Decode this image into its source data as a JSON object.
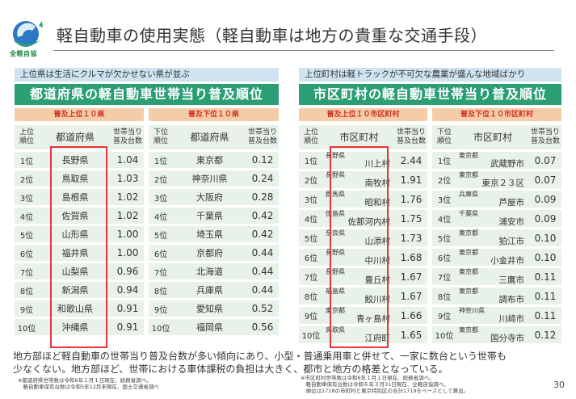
{
  "logo_text": "全軽自協",
  "title": "軽自動車の使用実態（軽自動車は地方の貴重な交通手段）",
  "left": {
    "caption": "上位県は生活にクルマが欠かせない県が並ぶ",
    "header": "都道府県の軽自動車世帯当り普及順位",
    "top_label": "普及上位１０県",
    "bottom_label": "普及下位１０県",
    "top_cols": [
      "上位\n順位",
      "都道府県",
      "世帯当り\n普及台数"
    ],
    "bottom_cols": [
      "下位\n順位",
      "都道府県",
      "世帯当り\n普及台数"
    ],
    "top_rows": [
      {
        "rank": "1位",
        "name": "長野県",
        "value": "1.04"
      },
      {
        "rank": "2位",
        "name": "鳥取県",
        "value": "1.03"
      },
      {
        "rank": "3位",
        "name": "島根県",
        "value": "1.02"
      },
      {
        "rank": "4位",
        "name": "佐賀県",
        "value": "1.02"
      },
      {
        "rank": "5位",
        "name": "山形県",
        "value": "1.00"
      },
      {
        "rank": "6位",
        "name": "福井県",
        "value": "1.00"
      },
      {
        "rank": "7位",
        "name": "山梨県",
        "value": "0.96"
      },
      {
        "rank": "8位",
        "name": "新潟県",
        "value": "0.94"
      },
      {
        "rank": "9位",
        "name": "和歌山県",
        "value": "0.91"
      },
      {
        "rank": "10位",
        "name": "沖縄県",
        "value": "0.91"
      }
    ],
    "bottom_rows": [
      {
        "rank": "1位",
        "name": "東京都",
        "value": "0.12"
      },
      {
        "rank": "2位",
        "name": "神奈川県",
        "value": "0.24"
      },
      {
        "rank": "3位",
        "name": "大阪府",
        "value": "0.28"
      },
      {
        "rank": "4位",
        "name": "千葉県",
        "value": "0.42"
      },
      {
        "rank": "5位",
        "name": "埼玉県",
        "value": "0.42"
      },
      {
        "rank": "6位",
        "name": "京都府",
        "value": "0.44"
      },
      {
        "rank": "7位",
        "name": "北海道",
        "value": "0.44"
      },
      {
        "rank": "8位",
        "name": "兵庫県",
        "value": "0.44"
      },
      {
        "rank": "9位",
        "name": "愛知県",
        "value": "0.52"
      },
      {
        "rank": "10位",
        "name": "福岡県",
        "value": "0.56"
      }
    ]
  },
  "right": {
    "caption": "上位町村は軽トラックが不可欠な農業が盛んな地域ばかり",
    "header": "市区町村の軽自動車世帯当り普及順位",
    "top_label": "普及上位１０市区町村",
    "bottom_label": "普及下位１０市区町村",
    "top_cols": [
      "上位\n順位",
      "市区町村",
      "世帯当り\n普及台数"
    ],
    "bottom_cols": [
      "下位\n順位",
      "市区町村",
      "世帯当り\n普及台数"
    ],
    "top_rows": [
      {
        "rank": "1位",
        "pref": "長野県",
        "city": "川上村",
        "value": "2.44"
      },
      {
        "rank": "2位",
        "pref": "長野県",
        "city": "南牧村",
        "value": "1.91"
      },
      {
        "rank": "3位",
        "pref": "群馬県",
        "city": "昭和村",
        "value": "1.76"
      },
      {
        "rank": "4位",
        "pref": "徳島県",
        "city": "佐那河内村",
        "value": "1.75"
      },
      {
        "rank": "5位",
        "pref": "奈良県",
        "city": "山添村",
        "value": "1.73"
      },
      {
        "rank": "6位",
        "pref": "長野県",
        "city": "中川村",
        "value": "1.68"
      },
      {
        "rank": "7位",
        "pref": "長野県",
        "city": "豊丘村",
        "value": "1.67"
      },
      {
        "rank": "8位",
        "pref": "福島県",
        "city": "鮫川村",
        "value": "1.67"
      },
      {
        "rank": "9位",
        "pref": "東京都",
        "city": "青ヶ島村",
        "value": "1.66"
      },
      {
        "rank": "10位",
        "pref": "鳥取県",
        "city": "江府町",
        "value": "1.65"
      }
    ],
    "bottom_rows": [
      {
        "rank": "1位",
        "pref": "東京都",
        "city": "武蔵野市",
        "value": "0.07"
      },
      {
        "rank": "2位",
        "pref": "東京都",
        "city": "東京２３区",
        "value": "0.07"
      },
      {
        "rank": "3位",
        "pref": "兵庫県",
        "city": "芦屋市",
        "value": "0.09"
      },
      {
        "rank": "4位",
        "pref": "千葉県",
        "city": "浦安市",
        "value": "0.09"
      },
      {
        "rank": "5位",
        "pref": "東京都",
        "city": "狛江市",
        "value": "0.10"
      },
      {
        "rank": "6位",
        "pref": "東京都",
        "city": "小金井市",
        "value": "0.10"
      },
      {
        "rank": "7位",
        "pref": "東京都",
        "city": "三鷹市",
        "value": "0.11"
      },
      {
        "rank": "8位",
        "pref": "東京都",
        "city": "調布市",
        "value": "0.11"
      },
      {
        "rank": "9位",
        "pref": "神奈川県",
        "city": "川崎市",
        "value": "0.11"
      },
      {
        "rank": "10位",
        "pref": "東京都",
        "city": "国分寺市",
        "value": "0.12"
      }
    ]
  },
  "summary": [
    "地方部ほど軽自動車の世帯当り普及台数が多い傾向にあり、小型・普通乗用車と併せて、一家に数台という世帯も",
    "少なくない。地方部ほど、世帯における車体課税の負担は大きく、都市と地方の格差となっている。"
  ],
  "note_left": [
    "※都道府県世帯数は令和6年１月１日現在、総務省調べ。",
    "　軽自動車保有台数は令和5年12月末現在、国土交通省調べ"
  ],
  "note_right": [
    "※市区町村世帯数は令和6年１月１日現在、総務省調べ。",
    "　軽自動車保有台数は令和６年３月31日現在、全軽自協調べ。",
    "　順位は1718の市町村と東京特別区の合計1719をベースとして算出。"
  ],
  "page_number": "30",
  "colors": {
    "green": "#2c9e74",
    "caption_bg": "#cfe3f1",
    "sub_bg": "#f4cda8",
    "sub_text": "#d12f22",
    "cell_bg": "#e8f2e8",
    "highlight": "#e8343a"
  }
}
